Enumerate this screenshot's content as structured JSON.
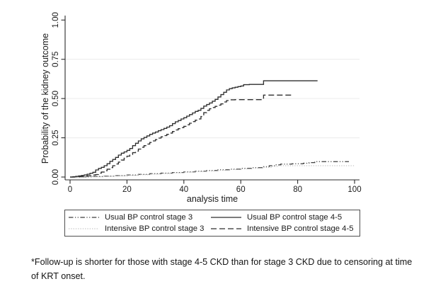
{
  "figure": {
    "footnote": "*Follow-up is shorter for those with stage 4-5 CKD than for stage 3 CKD due to censoring at time of KRT onset."
  },
  "colors": {
    "axis": "#2b2b2b",
    "grid": "#ececec",
    "text": "#1a1a1a",
    "dark_line": "#2f2f2f",
    "light_line": "#b4b4b4"
  },
  "chart_data": {
    "type": "line",
    "subtype": "kaplan-meier-failure-curves",
    "title": "",
    "xlabel": "analysis time",
    "ylabel": "Probability of the kidney outcome",
    "x_range": [
      0,
      100
    ],
    "y_range": [
      0,
      1
    ],
    "x_ticks": [
      0,
      20,
      40,
      60,
      80,
      100
    ],
    "x_tick_labels": [
      "0",
      "20",
      "40",
      "60",
      "80",
      "100"
    ],
    "y_ticks": [
      0,
      0.25,
      0.5,
      0.75,
      1
    ],
    "y_tick_labels": [
      "0.00",
      "0.25",
      "0.50",
      "0.75",
      "1.00"
    ],
    "grid": true,
    "grid_values": [
      0.25,
      0.5,
      0.75
    ],
    "legend_position": "bottom",
    "series": [
      {
        "key": "usual_3",
        "name": "Usual BP control stage 3",
        "style": {
          "color": "#3f3f3f",
          "width": 1.25,
          "dash": "6.5 2.5 1.2 2.5 1.2 2.5"
        },
        "points": [
          [
            0,
            0
          ],
          [
            4,
            0.001
          ],
          [
            8,
            0.003
          ],
          [
            12,
            0.006
          ],
          [
            16,
            0.009
          ],
          [
            20,
            0.013
          ],
          [
            24,
            0.017
          ],
          [
            28,
            0.021
          ],
          [
            32,
            0.025
          ],
          [
            36,
            0.029
          ],
          [
            40,
            0.033
          ],
          [
            44,
            0.037
          ],
          [
            48,
            0.042
          ],
          [
            52,
            0.046
          ],
          [
            56,
            0.05
          ],
          [
            60,
            0.055
          ],
          [
            64,
            0.06
          ],
          [
            68,
            0.066
          ],
          [
            70,
            0.072
          ],
          [
            72,
            0.078
          ],
          [
            74,
            0.082
          ],
          [
            78,
            0.085
          ],
          [
            82,
            0.088
          ],
          [
            84,
            0.092
          ],
          [
            86,
            0.098
          ],
          [
            98,
            0.098
          ]
        ]
      },
      {
        "key": "intensive_3",
        "name": "Intensive BP control stage 3",
        "style": {
          "color": "#b4b4b4",
          "width": 1.1,
          "dash": "1.3 2"
        },
        "points": [
          [
            0,
            0
          ],
          [
            4,
            0.001
          ],
          [
            8,
            0.002
          ],
          [
            12,
            0.005
          ],
          [
            16,
            0.008
          ],
          [
            20,
            0.011
          ],
          [
            24,
            0.015
          ],
          [
            28,
            0.019
          ],
          [
            32,
            0.023
          ],
          [
            36,
            0.027
          ],
          [
            40,
            0.031
          ],
          [
            44,
            0.035
          ],
          [
            48,
            0.039
          ],
          [
            52,
            0.043
          ],
          [
            56,
            0.048
          ],
          [
            60,
            0.052
          ],
          [
            64,
            0.057
          ],
          [
            68,
            0.062
          ],
          [
            71,
            0.068
          ],
          [
            73,
            0.072
          ],
          [
            100,
            0.074
          ]
        ]
      },
      {
        "key": "usual_45",
        "name": "Usual BP control stage 4-5",
        "style": {
          "color": "#2f2f2f",
          "width": 1.35,
          "dash": ""
        },
        "points": [
          [
            0,
            0
          ],
          [
            1,
            0.002
          ],
          [
            2,
            0.004
          ],
          [
            3,
            0.007
          ],
          [
            4,
            0.01
          ],
          [
            5,
            0.013
          ],
          [
            6,
            0.018
          ],
          [
            7,
            0.024
          ],
          [
            8,
            0.03
          ],
          [
            9,
            0.045
          ],
          [
            10,
            0.055
          ],
          [
            11,
            0.062
          ],
          [
            12,
            0.072
          ],
          [
            13,
            0.085
          ],
          [
            14,
            0.1
          ],
          [
            15,
            0.112
          ],
          [
            16,
            0.125
          ],
          [
            17,
            0.14
          ],
          [
            18,
            0.152
          ],
          [
            19,
            0.16
          ],
          [
            20,
            0.17
          ],
          [
            21,
            0.182
          ],
          [
            22,
            0.2
          ],
          [
            23,
            0.215
          ],
          [
            24,
            0.23
          ],
          [
            25,
            0.243
          ],
          [
            26,
            0.252
          ],
          [
            27,
            0.262
          ],
          [
            28,
            0.272
          ],
          [
            29,
            0.28
          ],
          [
            30,
            0.287
          ],
          [
            31,
            0.295
          ],
          [
            32,
            0.302
          ],
          [
            33,
            0.31
          ],
          [
            34,
            0.318
          ],
          [
            35,
            0.327
          ],
          [
            36,
            0.34
          ],
          [
            37,
            0.352
          ],
          [
            38,
            0.36
          ],
          [
            39,
            0.37
          ],
          [
            40,
            0.378
          ],
          [
            41,
            0.388
          ],
          [
            42,
            0.398
          ],
          [
            43,
            0.408
          ],
          [
            44,
            0.418
          ],
          [
            45,
            0.425
          ],
          [
            46,
            0.437
          ],
          [
            47,
            0.452
          ],
          [
            48,
            0.462
          ],
          [
            49,
            0.472
          ],
          [
            50,
            0.483
          ],
          [
            51,
            0.495
          ],
          [
            52,
            0.51
          ],
          [
            53,
            0.525
          ],
          [
            54,
            0.54
          ],
          [
            55,
            0.555
          ],
          [
            56,
            0.563
          ],
          [
            57,
            0.568
          ],
          [
            58,
            0.572
          ],
          [
            59,
            0.576
          ],
          [
            60,
            0.58
          ],
          [
            61,
            0.588
          ],
          [
            63,
            0.59
          ],
          [
            67,
            0.59
          ],
          [
            68,
            0.613
          ],
          [
            87,
            0.613
          ]
        ]
      },
      {
        "key": "intensive_45",
        "name": "Intensive BP control stage 4-5",
        "style": {
          "color": "#2f2f2f",
          "width": 1.35,
          "dash": "8 4"
        },
        "points": [
          [
            0,
            0
          ],
          [
            2,
            0.002
          ],
          [
            4,
            0.004
          ],
          [
            6,
            0.008
          ],
          [
            8,
            0.013
          ],
          [
            9,
            0.016
          ],
          [
            10,
            0.025
          ],
          [
            11,
            0.032
          ],
          [
            12,
            0.04
          ],
          [
            13,
            0.05
          ],
          [
            14,
            0.06
          ],
          [
            15,
            0.072
          ],
          [
            16,
            0.083
          ],
          [
            17,
            0.095
          ],
          [
            18,
            0.108
          ],
          [
            19,
            0.12
          ],
          [
            20,
            0.133
          ],
          [
            21,
            0.143
          ],
          [
            22,
            0.155
          ],
          [
            23,
            0.165
          ],
          [
            24,
            0.178
          ],
          [
            25,
            0.19
          ],
          [
            26,
            0.2
          ],
          [
            27,
            0.21
          ],
          [
            28,
            0.22
          ],
          [
            29,
            0.23
          ],
          [
            30,
            0.238
          ],
          [
            31,
            0.248
          ],
          [
            32,
            0.256
          ],
          [
            33,
            0.264
          ],
          [
            34,
            0.272
          ],
          [
            35,
            0.28
          ],
          [
            36,
            0.29
          ],
          [
            37,
            0.3
          ],
          [
            38,
            0.308
          ],
          [
            39,
            0.315
          ],
          [
            40,
            0.323
          ],
          [
            41,
            0.333
          ],
          [
            42,
            0.343
          ],
          [
            43,
            0.353
          ],
          [
            44,
            0.362
          ],
          [
            45,
            0.37
          ],
          [
            46,
            0.385
          ],
          [
            47,
            0.41
          ],
          [
            48,
            0.425
          ],
          [
            49,
            0.435
          ],
          [
            50,
            0.443
          ],
          [
            51,
            0.45
          ],
          [
            52,
            0.458
          ],
          [
            53,
            0.466
          ],
          [
            54,
            0.478
          ],
          [
            55,
            0.487
          ],
          [
            56,
            0.492
          ],
          [
            58,
            0.493
          ],
          [
            67,
            0.493
          ],
          [
            68,
            0.522
          ],
          [
            78,
            0.522
          ]
        ]
      }
    ],
    "legend": [
      {
        "label": "Usual BP control stage 3",
        "series_key": "usual_3"
      },
      {
        "label": "Usual BP control stage 4-5",
        "series_key": "usual_45"
      },
      {
        "label": "Intensive BP control stage 3",
        "series_key": "intensive_3"
      },
      {
        "label": "Intensive BP control stage 4-5",
        "series_key": "intensive_45"
      }
    ]
  }
}
